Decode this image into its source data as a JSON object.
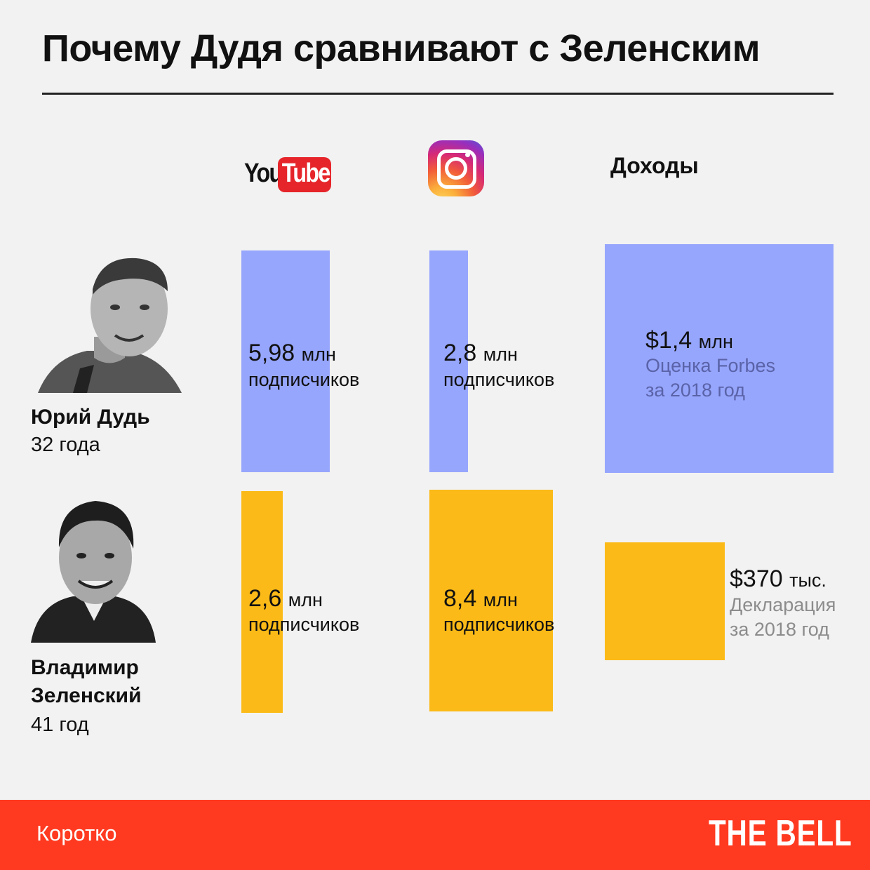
{
  "title": "Почему Дудя сравнивают с Зеленским",
  "columns": {
    "youtube_logo": {
      "you": "You",
      "tube": "Tube"
    },
    "instagram_icon": "instagram-icon",
    "income": "Доходы"
  },
  "people": [
    {
      "name_lines": [
        "Юрий Дудь"
      ],
      "age": "32 года"
    },
    {
      "name_lines": [
        "Владимир",
        "Зеленский"
      ],
      "age": "41 год"
    }
  ],
  "chart_data": {
    "type": "bar",
    "categories": [
      "YouTube",
      "Instagram",
      "Доходы"
    ],
    "series": [
      {
        "name": "Юрий Дудь",
        "color": "#97a6fd",
        "youtube": {
          "value": 5.98,
          "number": "5,98",
          "unit": "млн",
          "caption": "подписчиков"
        },
        "instagram": {
          "value": 2.8,
          "number": "2,8",
          "unit": "млн",
          "caption": "подписчиков"
        },
        "income": {
          "value": 1400000,
          "number": "$1,4",
          "unit": "млн",
          "note_lines": [
            "Оценка Forbes",
            "за 2018 год"
          ]
        }
      },
      {
        "name": "Владимир Зеленский",
        "color": "#fbba17",
        "youtube": {
          "value": 2.6,
          "number": "2,6",
          "unit": "млн",
          "caption": "подписчиков"
        },
        "instagram": {
          "value": 8.4,
          "number": "8,4",
          "unit": "млн",
          "caption": "подписчиков"
        },
        "income": {
          "value": 370000,
          "number": "$370",
          "unit": "тыс.",
          "note_lines": [
            "Декларация",
            "за 2018 год"
          ]
        }
      }
    ]
  },
  "footer": {
    "left": "Коротко",
    "brand": "THE BELL"
  }
}
